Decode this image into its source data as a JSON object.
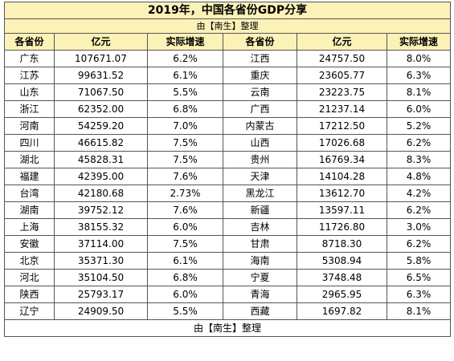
{
  "title": "2019年，中国各省份GDP分享",
  "subtitle": "由【南生】整理",
  "headers": [
    "各省份",
    "亿元",
    "实际增速",
    "各省份",
    "亿元",
    "实际增速"
  ],
  "rows": [
    [
      "广东",
      "107671.07",
      "6.2%",
      "江西",
      "24757.50",
      "8.0%"
    ],
    [
      "江苏",
      "99631.52",
      "6.1%",
      "重庆",
      "23605.77",
      "6.3%"
    ],
    [
      "山东",
      "71067.50",
      "5.5%",
      "云南",
      "23223.75",
      "8.1%"
    ],
    [
      "浙江",
      "62352.00",
      "6.8%",
      "广西",
      "21237.14",
      "6.0%"
    ],
    [
      "河南",
      "54259.20",
      "7.0%",
      "内蒙古",
      "17212.50",
      "5.2%"
    ],
    [
      "四川",
      "46615.82",
      "7.5%",
      "山西",
      "17026.68",
      "6.2%"
    ],
    [
      "湖北",
      "45828.31",
      "7.5%",
      "贵州",
      "16769.34",
      "8.3%"
    ],
    [
      "福建",
      "42395.00",
      "7.6%",
      "天津",
      "14104.28",
      "4.8%"
    ],
    [
      "台湾",
      "42180.68",
      "2.73%",
      "黑龙江",
      "13612.70",
      "4.2%"
    ],
    [
      "湖南",
      "39752.12",
      "7.6%",
      "新疆",
      "13597.11",
      "6.2%"
    ],
    [
      "上海",
      "38155.32",
      "6.0%",
      "吉林",
      "11726.80",
      "3.0%"
    ],
    [
      "安徽",
      "37114.00",
      "7.5%",
      "甘肃",
      "8718.30",
      "6.2%"
    ],
    [
      "北京",
      "35371.30",
      "6.1%",
      "海南",
      "5308.94",
      "5.8%"
    ],
    [
      "河北",
      "35104.50",
      "6.8%",
      "宁夏",
      "3748.48",
      "6.5%"
    ],
    [
      "陕西",
      "25793.17",
      "6.0%",
      "青海",
      "2965.95",
      "6.3%"
    ],
    [
      "辽宁",
      "24909.50",
      "5.5%",
      "西藏",
      "1697.82",
      "8.1%"
    ]
  ],
  "footer": "由【南生】整理",
  "colors": {
    "header_bg": "#fcf2b8",
    "border": "#555555"
  }
}
